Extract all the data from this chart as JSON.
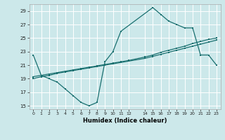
{
  "xlabel": "Humidex (Indice chaleur)",
  "bg_color": "#cce8ea",
  "line_color": "#1a7070",
  "grid_color": "#ffffff",
  "xlim": [
    -0.5,
    23.5
  ],
  "ylim": [
    14.5,
    30.0
  ],
  "xticks": [
    0,
    1,
    2,
    3,
    4,
    5,
    6,
    7,
    8,
    9,
    10,
    11,
    12,
    14,
    15,
    16,
    17,
    18,
    19,
    20,
    21,
    22,
    23
  ],
  "yticks": [
    15,
    17,
    19,
    21,
    23,
    25,
    27,
    29
  ],
  "line1_x": [
    0,
    1,
    2,
    3,
    4,
    5,
    6,
    7,
    8,
    9,
    10,
    11,
    15,
    16,
    17,
    18,
    19,
    20,
    21,
    22,
    23
  ],
  "line1_y": [
    22.5,
    19.5,
    19.0,
    18.5,
    17.5,
    16.5,
    15.5,
    15.0,
    15.5,
    21.5,
    23.0,
    26.0,
    29.5,
    28.5,
    27.5,
    27.0,
    26.5,
    26.5,
    22.5,
    22.5,
    21.0
  ],
  "line2_x": [
    0,
    1,
    2,
    3,
    4,
    5,
    6,
    7,
    8,
    9,
    10,
    11,
    12,
    14,
    15,
    16,
    17,
    18,
    19,
    20,
    21,
    22,
    23
  ],
  "line2_y": [
    19.3,
    19.5,
    19.7,
    19.9,
    20.1,
    20.3,
    20.5,
    20.7,
    20.9,
    21.1,
    21.3,
    21.5,
    21.7,
    22.2,
    22.5,
    22.9,
    23.2,
    23.5,
    23.8,
    24.2,
    24.5,
    24.8,
    25.0
  ],
  "line3_x": [
    0,
    1,
    2,
    3,
    4,
    5,
    6,
    7,
    8,
    9,
    10,
    11,
    12,
    14,
    15,
    16,
    17,
    18,
    19,
    20,
    21,
    22,
    23
  ],
  "line3_y": [
    19.0,
    19.3,
    19.5,
    19.8,
    20.0,
    20.2,
    20.4,
    20.6,
    20.8,
    21.0,
    21.2,
    21.4,
    21.6,
    22.0,
    22.3,
    22.6,
    22.9,
    23.2,
    23.5,
    23.8,
    24.1,
    24.4,
    24.7
  ]
}
